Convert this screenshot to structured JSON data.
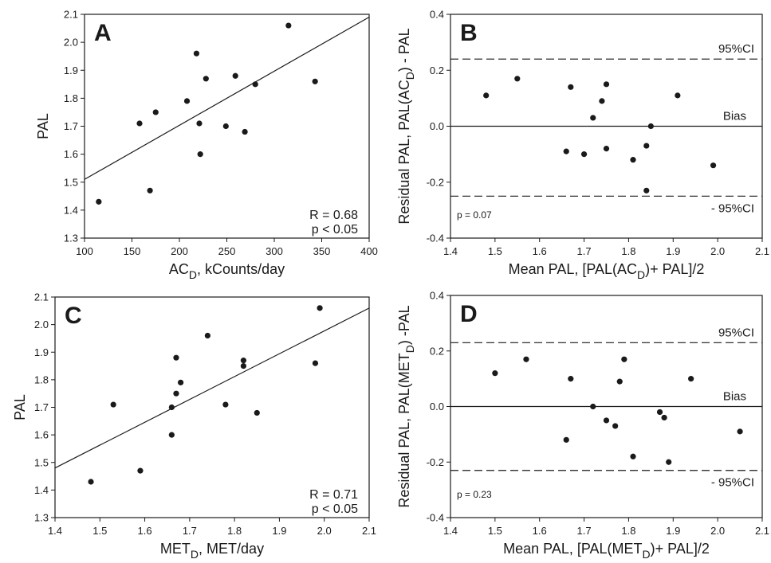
{
  "chart_data": [
    {
      "panel": "A",
      "type": "scatter",
      "xlabel": {
        "main": "AC",
        "sub": "D",
        "rest": ", kCounts/day"
      },
      "ylabel": {
        "main": "PAL"
      },
      "xlim": [
        100,
        400
      ],
      "ylim": [
        1.3,
        2.1
      ],
      "xticks": [
        "100",
        "150",
        "200",
        "250",
        "300",
        "350",
        "400"
      ],
      "yticks": [
        "1.3",
        "1.4",
        "1.5",
        "1.6",
        "1.7",
        "1.8",
        "1.9",
        "2.0",
        "2.1"
      ],
      "points": [
        {
          "x": 115,
          "y": 1.43
        },
        {
          "x": 158,
          "y": 1.71
        },
        {
          "x": 169,
          "y": 1.47
        },
        {
          "x": 175,
          "y": 1.75
        },
        {
          "x": 208,
          "y": 1.79
        },
        {
          "x": 218,
          "y": 1.96
        },
        {
          "x": 221,
          "y": 1.71
        },
        {
          "x": 222,
          "y": 1.6
        },
        {
          "x": 228,
          "y": 1.87
        },
        {
          "x": 249,
          "y": 1.7
        },
        {
          "x": 259,
          "y": 1.88
        },
        {
          "x": 269,
          "y": 1.68
        },
        {
          "x": 280,
          "y": 1.85
        },
        {
          "x": 315,
          "y": 2.06
        },
        {
          "x": 343,
          "y": 1.86
        }
      ],
      "regression_line": {
        "x": [
          100,
          400
        ],
        "y": [
          1.51,
          2.09
        ]
      },
      "annotations": [
        "R = 0.68",
        "p < 0.05"
      ]
    },
    {
      "panel": "B",
      "type": "scatter",
      "xlabel": {
        "main": "Mean PAL, [PAL(AC",
        "sub": "D",
        "rest": ")+ PAL]/2"
      },
      "ylabel": {
        "main": "Residual PAL, PAL(AC",
        "sub": "D",
        "rest": ") - PAL"
      },
      "xlim": [
        1.4,
        2.1
      ],
      "ylim": [
        -0.4,
        0.4
      ],
      "xticks": [
        "1.4",
        "1.5",
        "1.6",
        "1.7",
        "1.8",
        "1.9",
        "2.0",
        "2.1"
      ],
      "yticks": [
        "-0.4",
        "-0.2",
        "0.0",
        "0.2",
        "0.4"
      ],
      "points": [
        {
          "x": 1.48,
          "y": 0.11
        },
        {
          "x": 1.55,
          "y": 0.17
        },
        {
          "x": 1.66,
          "y": -0.09
        },
        {
          "x": 1.67,
          "y": 0.14
        },
        {
          "x": 1.7,
          "y": -0.1
        },
        {
          "x": 1.72,
          "y": 0.03
        },
        {
          "x": 1.74,
          "y": 0.09
        },
        {
          "x": 1.75,
          "y": -0.08
        },
        {
          "x": 1.75,
          "y": 0.15
        },
        {
          "x": 1.81,
          "y": -0.12
        },
        {
          "x": 1.84,
          "y": -0.07
        },
        {
          "x": 1.84,
          "y": -0.23
        },
        {
          "x": 1.85,
          "y": 0.0
        },
        {
          "x": 1.91,
          "y": 0.11
        },
        {
          "x": 1.99,
          "y": -0.14
        }
      ],
      "bias": 0.0,
      "ci_upper": 0.24,
      "ci_lower": -0.25,
      "labels": {
        "upper": "95%CI",
        "bias": "Bias",
        "lower": "- 95%CI"
      },
      "pvalue": "p = 0.07"
    },
    {
      "panel": "C",
      "type": "scatter",
      "xlabel": {
        "main": "MET",
        "sub": "D",
        "rest": ", MET/day"
      },
      "ylabel": {
        "main": "PAL"
      },
      "xlim": [
        1.4,
        2.1
      ],
      "ylim": [
        1.3,
        2.1
      ],
      "xticks": [
        "1.4",
        "1.5",
        "1.6",
        "1.7",
        "1.8",
        "1.9",
        "2.0",
        "2.1"
      ],
      "yticks": [
        "1.3",
        "1.4",
        "1.5",
        "1.6",
        "1.7",
        "1.8",
        "1.9",
        "2.0",
        "2.1"
      ],
      "points": [
        {
          "x": 1.48,
          "y": 1.43
        },
        {
          "x": 1.53,
          "y": 1.71
        },
        {
          "x": 1.59,
          "y": 1.47
        },
        {
          "x": 1.66,
          "y": 1.6
        },
        {
          "x": 1.66,
          "y": 1.7
        },
        {
          "x": 1.67,
          "y": 1.88
        },
        {
          "x": 1.67,
          "y": 1.75
        },
        {
          "x": 1.68,
          "y": 1.79
        },
        {
          "x": 1.74,
          "y": 1.96
        },
        {
          "x": 1.78,
          "y": 1.71
        },
        {
          "x": 1.82,
          "y": 1.85
        },
        {
          "x": 1.82,
          "y": 1.87
        },
        {
          "x": 1.85,
          "y": 1.68
        },
        {
          "x": 1.98,
          "y": 1.86
        },
        {
          "x": 1.99,
          "y": 2.06
        }
      ],
      "regression_line": {
        "x": [
          1.4,
          2.1
        ],
        "y": [
          1.48,
          2.06
        ]
      },
      "annotations": [
        "R = 0.71",
        "p < 0.05"
      ]
    },
    {
      "panel": "D",
      "type": "scatter",
      "xlabel": {
        "main": "Mean PAL, [PAL(MET",
        "sub": "D",
        "rest": ")+ PAL]/2"
      },
      "ylabel": {
        "main": "Residual PAL, PAL(MET",
        "sub": "D",
        "rest": ") -PAL"
      },
      "xlim": [
        1.4,
        2.1
      ],
      "ylim": [
        -0.4,
        0.4
      ],
      "xticks": [
        "1.4",
        "1.5",
        "1.6",
        "1.7",
        "1.8",
        "1.9",
        "2.0",
        "2.1"
      ],
      "yticks": [
        "-0.4",
        "-0.2",
        "0.0",
        "0.2",
        "0.4"
      ],
      "points": [
        {
          "x": 1.5,
          "y": 0.12
        },
        {
          "x": 1.57,
          "y": 0.17
        },
        {
          "x": 1.66,
          "y": -0.12
        },
        {
          "x": 1.67,
          "y": 0.1
        },
        {
          "x": 1.72,
          "y": 0.0
        },
        {
          "x": 1.75,
          "y": -0.05
        },
        {
          "x": 1.77,
          "y": -0.07
        },
        {
          "x": 1.78,
          "y": 0.09
        },
        {
          "x": 1.79,
          "y": 0.17
        },
        {
          "x": 1.81,
          "y": -0.18
        },
        {
          "x": 1.87,
          "y": -0.02
        },
        {
          "x": 1.88,
          "y": -0.04
        },
        {
          "x": 1.89,
          "y": -0.2
        },
        {
          "x": 1.94,
          "y": 0.1
        },
        {
          "x": 2.05,
          "y": -0.09
        }
      ],
      "bias": 0.0,
      "ci_upper": 0.23,
      "ci_lower": -0.23,
      "labels": {
        "upper": "95%CI",
        "bias": "Bias",
        "lower": "- 95%CI"
      },
      "pvalue": "p = 0.23"
    }
  ],
  "colors": {
    "ink": "#1a1a1a",
    "background": "#ffffff"
  }
}
